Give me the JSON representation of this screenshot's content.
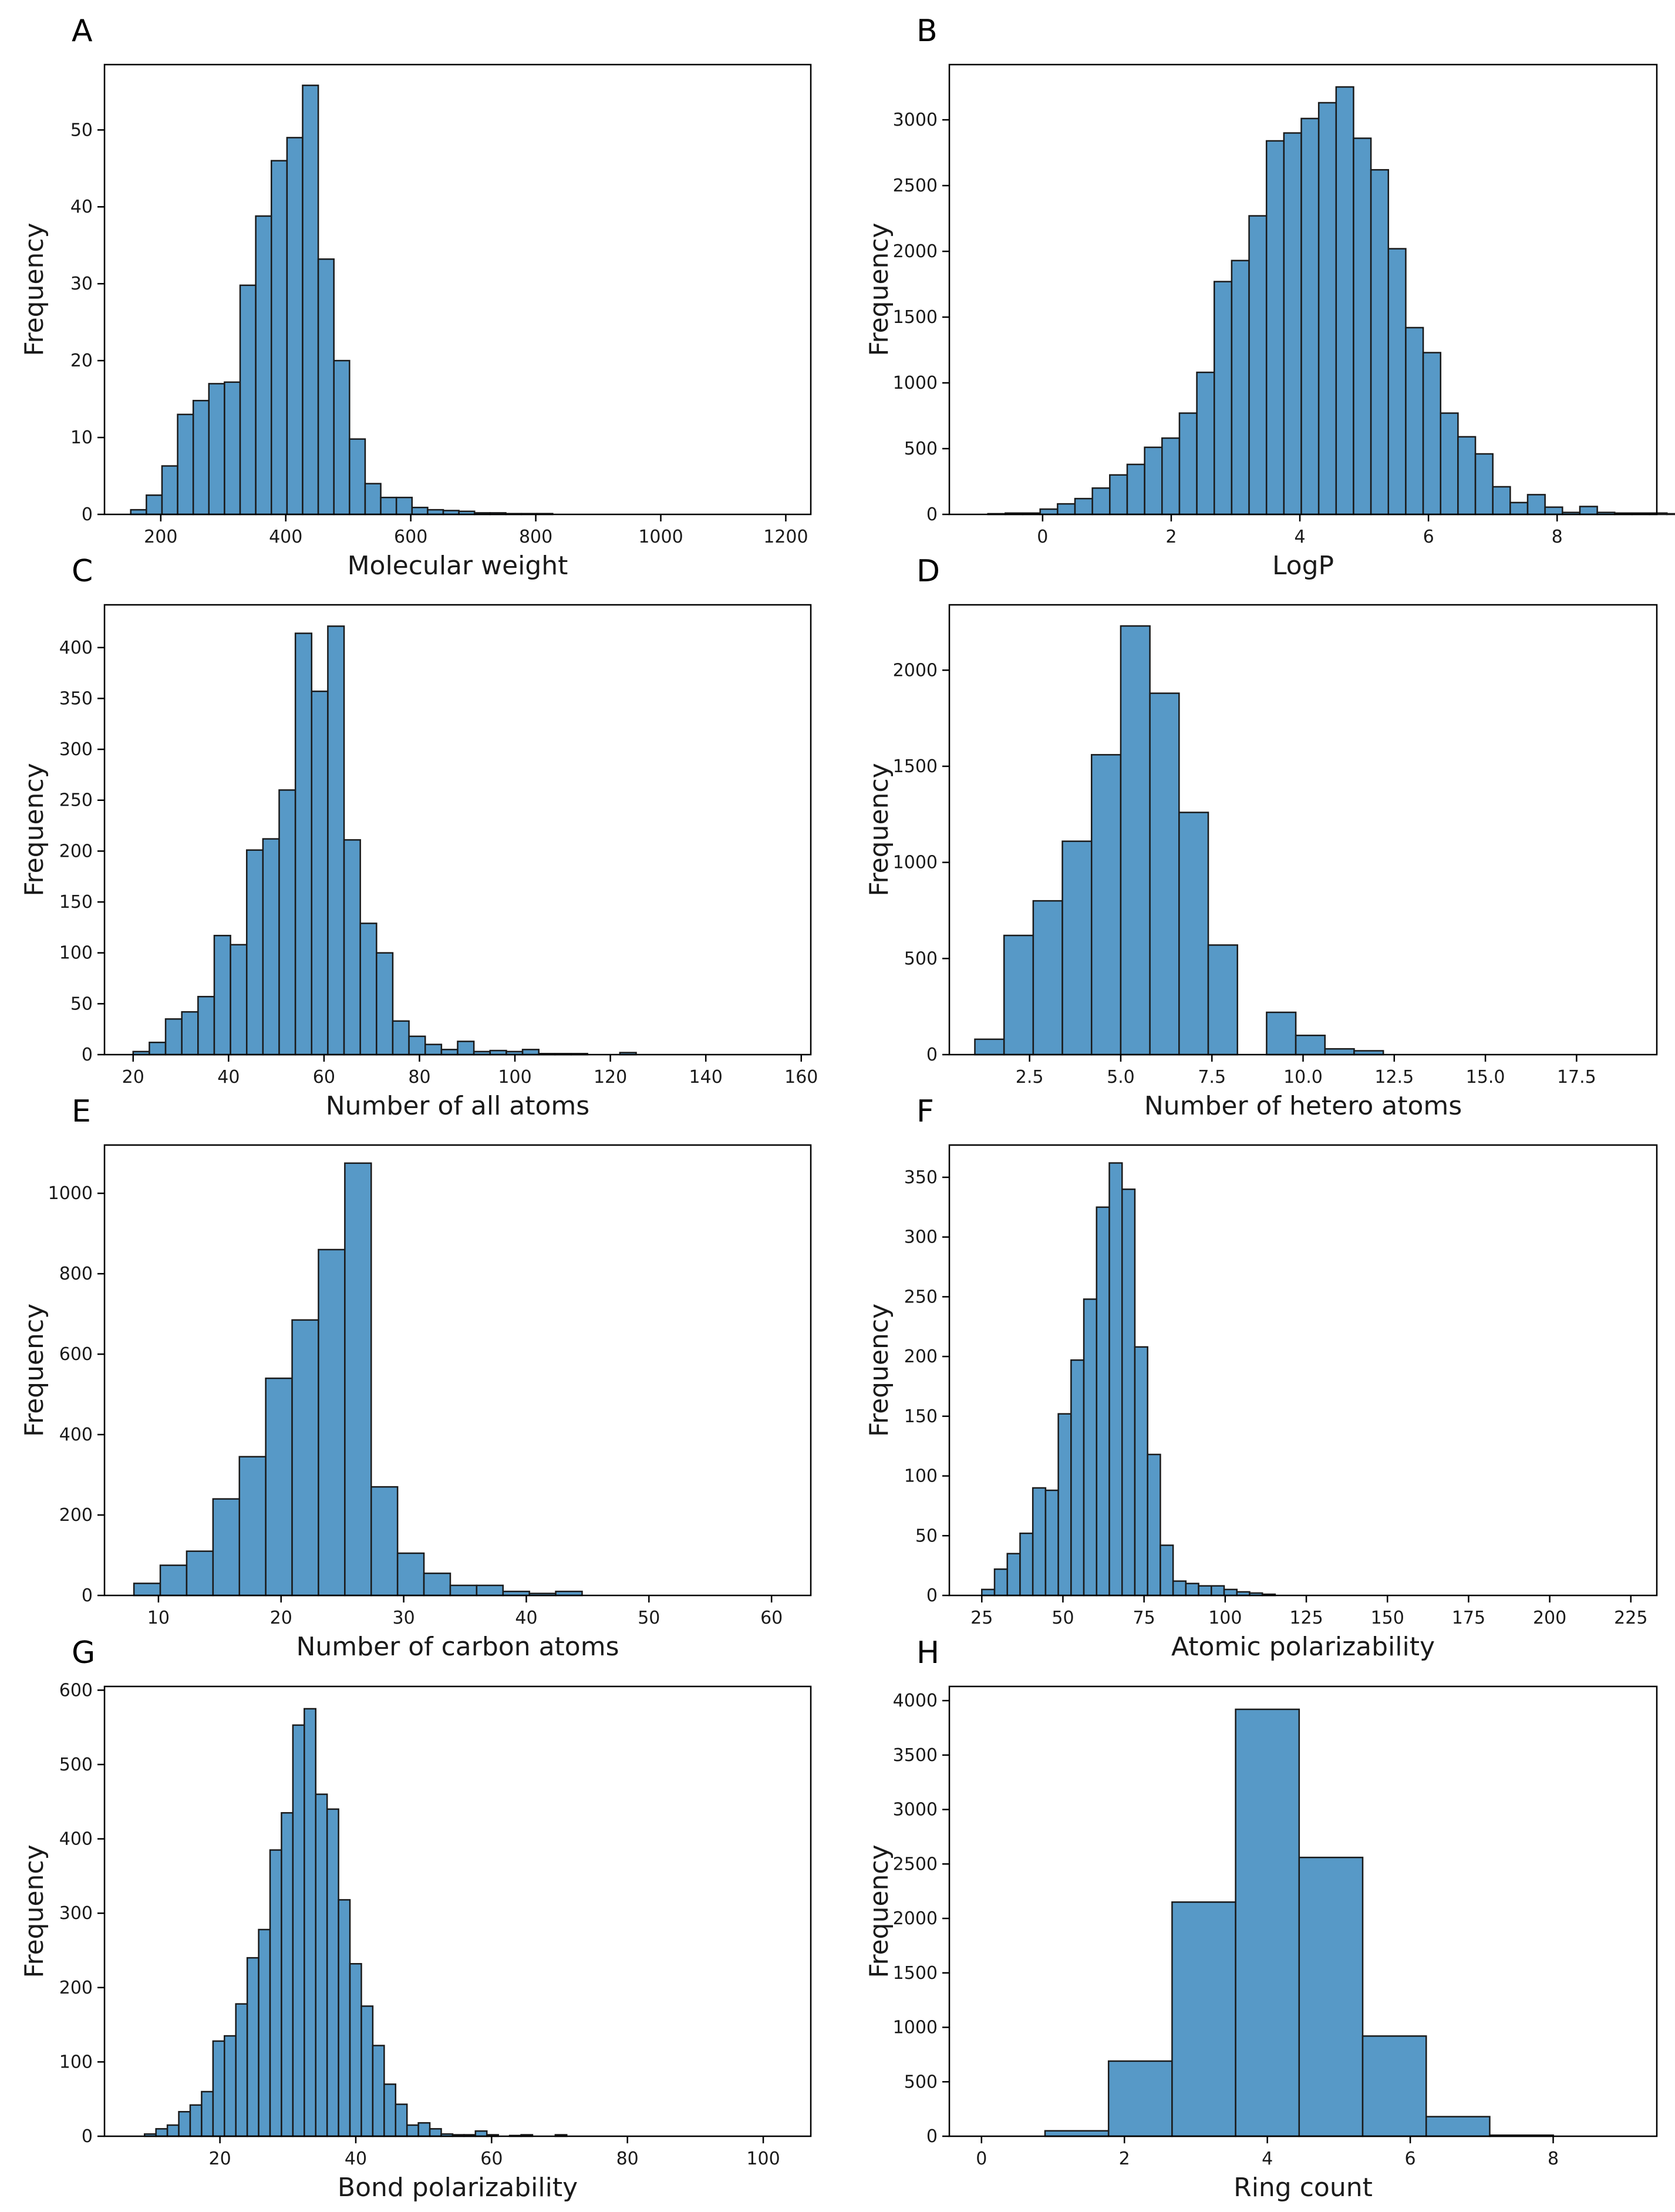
{
  "figure": {
    "bar_color": "#5799c7",
    "edge_color": "#1a1a1a"
  },
  "chart_data": [
    {
      "type": "bar",
      "panel": "A",
      "xlabel": "Molecular weight",
      "ylabel": "Frequency",
      "xlim": [
        110,
        1240
      ],
      "ylim": [
        0,
        58.5
      ],
      "xticks": [
        200,
        400,
        600,
        800,
        1000,
        1200
      ],
      "xtick_labels": [
        "200",
        "400",
        "600",
        "800",
        "1000",
        "1200"
      ],
      "yticks": [
        0,
        10,
        20,
        30,
        40,
        50
      ],
      "ytick_labels": [
        "0",
        "10",
        "20",
        "30",
        "40",
        "50"
      ],
      "bin_start": 152,
      "bin_width": 25,
      "values": [
        0.6,
        2.5,
        6.3,
        13,
        14.8,
        17,
        17.2,
        29.8,
        38.8,
        46,
        49,
        55.8,
        33.2,
        20,
        9.8,
        4,
        2.2,
        2.2,
        0.9,
        0.6,
        0.5,
        0.4,
        0.2,
        0.2,
        0.1,
        0.1,
        0.1
      ]
    },
    {
      "type": "bar",
      "panel": "B",
      "xlabel": "LogP",
      "ylabel": "Frequency",
      "xlim": [
        -1.45,
        9.55
      ],
      "ylim": [
        0,
        3420
      ],
      "xticks": [
        0,
        2,
        4,
        6,
        8
      ],
      "xtick_labels": [
        "0",
        "2",
        "4",
        "6",
        "8"
      ],
      "yticks": [
        0,
        500,
        1000,
        1500,
        2000,
        2500,
        3000
      ],
      "ytick_labels": [
        "0",
        "500",
        "1000",
        "1500",
        "2000",
        "2500",
        "3000"
      ],
      "bin_start": -0.85,
      "bin_width": 0.2707,
      "values": [
        5,
        10,
        10,
        40,
        80,
        120,
        200,
        300,
        380,
        510,
        580,
        770,
        1080,
        1770,
        1930,
        2270,
        2840,
        2900,
        3010,
        3130,
        3250,
        2860,
        2620,
        2020,
        1420,
        1230,
        770,
        590,
        460,
        210,
        90,
        150,
        55,
        15,
        60,
        15,
        10,
        10,
        10,
        5,
        25
      ]
    },
    {
      "type": "bar",
      "panel": "C",
      "xlabel": "Number of all atoms",
      "ylabel": "Frequency",
      "xlim": [
        14,
        162
      ],
      "ylim": [
        0,
        442
      ],
      "xticks": [
        20,
        40,
        60,
        80,
        100,
        120,
        140,
        160
      ],
      "xtick_labels": [
        "20",
        "40",
        "60",
        "80",
        "100",
        "120",
        "140",
        "160"
      ],
      "yticks": [
        0,
        50,
        100,
        150,
        200,
        250,
        300,
        350,
        400
      ],
      "ytick_labels": [
        "0",
        "50",
        "100",
        "150",
        "200",
        "250",
        "300",
        "350",
        "400"
      ],
      "bin_start": 20,
      "bin_width": 3.4,
      "values": [
        3,
        12,
        35,
        42,
        57,
        117,
        108,
        201,
        212,
        260,
        414,
        357,
        421,
        211,
        129,
        100,
        33,
        18,
        10,
        5,
        13,
        3,
        4,
        3,
        5,
        1,
        1,
        1,
        0,
        0,
        2
      ]
    },
    {
      "type": "bar",
      "panel": "D",
      "xlabel": "Number of hetero atoms",
      "ylabel": "Frequency",
      "xlim": [
        0.3,
        19.7
      ],
      "ylim": [
        0,
        2340
      ],
      "xticks": [
        2.5,
        5,
        7.5,
        10,
        12.5,
        15,
        17.5
      ],
      "xtick_labels": [
        "2.5",
        "5.0",
        "7.5",
        "10.0",
        "12.5",
        "15.0",
        "17.5"
      ],
      "yticks": [
        0,
        500,
        1000,
        1500,
        2000
      ],
      "ytick_labels": [
        "0",
        "500",
        "1000",
        "1500",
        "2000"
      ],
      "bin_start": 1,
      "bin_width": 0.8,
      "values": [
        80,
        620,
        800,
        1110,
        1560,
        2230,
        1880,
        1260,
        570,
        0,
        220,
        100,
        30,
        20
      ]
    },
    {
      "type": "bar",
      "panel": "E",
      "xlabel": "Number of carbon atoms",
      "ylabel": "Frequency",
      "xlim": [
        5.6,
        63.2
      ],
      "ylim": [
        0,
        1120
      ],
      "xticks": [
        10,
        20,
        30,
        40,
        50,
        60
      ],
      "xtick_labels": [
        "10",
        "20",
        "30",
        "40",
        "50",
        "60"
      ],
      "yticks": [
        0,
        200,
        400,
        600,
        800,
        1000
      ],
      "ytick_labels": [
        "0",
        "200",
        "400",
        "600",
        "800",
        "1000"
      ],
      "bin_start": 8,
      "bin_width": 2.15,
      "values": [
        30,
        75,
        110,
        240,
        345,
        540,
        685,
        860,
        1075,
        270,
        105,
        55,
        25,
        25,
        10,
        5,
        10
      ]
    },
    {
      "type": "bar",
      "panel": "F",
      "xlabel": "Atomic polarizability",
      "ylabel": "Frequency",
      "xlim": [
        15,
        233
      ],
      "ylim": [
        0,
        377
      ],
      "xticks": [
        25,
        50,
        75,
        100,
        125,
        150,
        175,
        200,
        225
      ],
      "xtick_labels": [
        "25",
        "50",
        "75",
        "100",
        "125",
        "150",
        "175",
        "200",
        "225"
      ],
      "yticks": [
        0,
        50,
        100,
        150,
        200,
        250,
        300,
        350
      ],
      "ytick_labels": [
        "0",
        "50",
        "100",
        "150",
        "200",
        "250",
        "300",
        "350"
      ],
      "bin_start": 25,
      "bin_width": 3.93,
      "values": [
        5,
        22,
        35,
        52,
        90,
        88,
        152,
        197,
        248,
        325,
        362,
        340,
        208,
        118,
        42,
        12,
        10,
        8,
        8,
        5,
        3,
        2,
        1
      ]
    },
    {
      "type": "bar",
      "panel": "G",
      "xlabel": "Bond polarizability",
      "ylabel": "Frequency",
      "xlim": [
        3,
        107
      ],
      "ylim": [
        0,
        605
      ],
      "xticks": [
        20,
        40,
        60,
        80,
        100
      ],
      "xtick_labels": [
        "20",
        "40",
        "60",
        "80",
        "100"
      ],
      "yticks": [
        0,
        100,
        200,
        300,
        400,
        500,
        600
      ],
      "ytick_labels": [
        "0",
        "100",
        "200",
        "300",
        "400",
        "500",
        "600"
      ],
      "bin_start": 8.9,
      "bin_width": 1.68,
      "values": [
        3,
        10,
        15,
        33,
        42,
        60,
        128,
        135,
        178,
        240,
        278,
        385,
        435,
        553,
        575,
        460,
        440,
        318,
        232,
        175,
        122,
        70,
        43,
        15,
        18,
        10,
        3,
        2,
        2,
        7,
        2,
        0,
        1,
        2,
        0,
        0,
        2
      ]
    },
    {
      "type": "bar",
      "panel": "H",
      "xlabel": "Ring count",
      "ylabel": "Frequency",
      "xlim": [
        -0.45,
        9.45
      ],
      "ylim": [
        0,
        4130
      ],
      "xticks": [
        0,
        2,
        4,
        6,
        8
      ],
      "xtick_labels": [
        "0",
        "2",
        "4",
        "6",
        "8"
      ],
      "yticks": [
        0,
        500,
        1000,
        1500,
        2000,
        2500,
        3000,
        3500,
        4000
      ],
      "ytick_labels": [
        "0",
        "500",
        "1000",
        "1500",
        "2000",
        "2500",
        "3000",
        "3500",
        "4000"
      ],
      "bin_start": 0,
      "bin_width": 0.889,
      "values": [
        0,
        50,
        690,
        2150,
        3920,
        2560,
        920,
        180,
        10
      ]
    }
  ]
}
